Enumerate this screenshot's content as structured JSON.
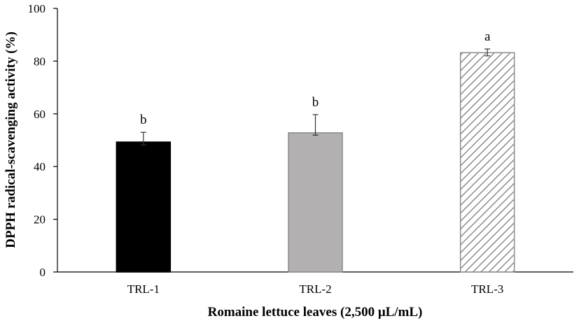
{
  "chart_data": {
    "type": "bar",
    "categories": [
      "TRL-1",
      "TRL-2",
      "TRL-3"
    ],
    "values": [
      49.3,
      52.8,
      83.2
    ],
    "error_upper": [
      53.0,
      59.7,
      84.6
    ],
    "error_lower": [
      48.2,
      51.9,
      82.0
    ],
    "significance_labels": [
      "b",
      "b",
      "a"
    ],
    "bar_styles": [
      "solid-black",
      "solid-gray",
      "diagonal-hatch"
    ],
    "colors": {
      "bar1_fill": "#000000",
      "bar2_fill": "#b2b0b0",
      "bar2_stroke": "#8a8888",
      "bar3_hatch": "#8c8c8c",
      "bar3_stroke": "#8c8c8c",
      "axis": "#000000"
    },
    "title": "",
    "xlabel": "Romaine lettuce leaves (2,500 μL/mL)",
    "ylabel": "DPPH radical-scavenging activity (%)",
    "ylim": [
      0,
      100
    ],
    "yticks": [
      "0",
      "20",
      "40",
      "60",
      "80",
      "100"
    ],
    "grid": false,
    "legend": "none"
  }
}
